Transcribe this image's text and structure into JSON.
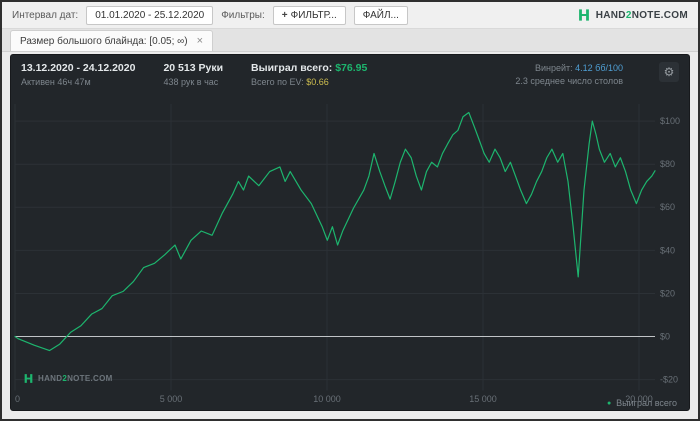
{
  "colors": {
    "green": "#1db56e",
    "ev_yellow": "#cdbd4f",
    "winrate_blue": "#4f9fd4"
  },
  "icons": {
    "gear": "⚙",
    "close": "×",
    "plus": "+",
    "legend_dot": "●"
  },
  "brand": {
    "pre": "HAND",
    "two": "2",
    "post": "NOTE.COM"
  },
  "topbar": {
    "date_interval_label": "Интервал дат:",
    "date_range": "01.01.2020 - 25.12.2020",
    "filters_label": "Фильтры:",
    "add_filter_label": "ФИЛЬТР...",
    "file_label": "ФАЙЛ..."
  },
  "tabs": [
    {
      "label": "Размер большого блайнда: [0.05; ∞)"
    }
  ],
  "stats": {
    "date_range": "13.12.2020 - 24.12.2020",
    "active_time": "Активен 46ч 47м",
    "hands": "20 513 Руки",
    "hands_per_hour": "438 рук в час",
    "won_label": "Выиграл всего:",
    "won_value": "$76.95",
    "ev_label": "Всего по EV:",
    "ev_value": "$0.66",
    "winrate_label": "Винрейт:",
    "winrate_value": "4.12 бб/100",
    "avg_tables": "2.3 среднее число столов"
  },
  "chart_data": {
    "type": "line",
    "title": "",
    "xlabel": "",
    "ylabel": "",
    "xlim": [
      0,
      20513
    ],
    "ylim": [
      -25,
      108
    ],
    "grid": true,
    "legend_position": "bottom-right",
    "x_ticks": [
      {
        "v": 0,
        "label": "0"
      },
      {
        "v": 5000,
        "label": "5 000"
      },
      {
        "v": 10000,
        "label": "10 000"
      },
      {
        "v": 15000,
        "label": "15 000"
      },
      {
        "v": 20000,
        "label": "20 000"
      }
    ],
    "y_ticks": [
      {
        "v": -20,
        "label": "-$20"
      },
      {
        "v": 0,
        "label": "$0"
      },
      {
        "v": 20,
        "label": "$20"
      },
      {
        "v": 40,
        "label": "$40"
      },
      {
        "v": 60,
        "label": "$60"
      },
      {
        "v": 80,
        "label": "$80"
      },
      {
        "v": 100,
        "label": "$100"
      }
    ],
    "line_color": "#1db56e",
    "grid_color": "#2c3136",
    "zero_line_color": "#d8dbde",
    "tick_color": "#697077",
    "series": [
      {
        "name": "Выиграл всего",
        "color": "#1db56e",
        "points": [
          [
            0,
            0
          ],
          [
            100,
            -1
          ],
          [
            615,
            -4
          ],
          [
            1108,
            -6.5
          ],
          [
            1436,
            -3.5
          ],
          [
            1785,
            2
          ],
          [
            2113,
            5
          ],
          [
            2462,
            10.5
          ],
          [
            2790,
            13
          ],
          [
            3118,
            19
          ],
          [
            3467,
            21
          ],
          [
            3795,
            25.5
          ],
          [
            4123,
            32
          ],
          [
            4472,
            34
          ],
          [
            4800,
            38
          ],
          [
            5128,
            42.5
          ],
          [
            5313,
            36
          ],
          [
            5641,
            44.7
          ],
          [
            5969,
            49
          ],
          [
            6318,
            47
          ],
          [
            6646,
            57.4
          ],
          [
            6974,
            66
          ],
          [
            7159,
            72
          ],
          [
            7323,
            68
          ],
          [
            7487,
            74.5
          ],
          [
            7815,
            70
          ],
          [
            8164,
            76.6
          ],
          [
            8492,
            78.7
          ],
          [
            8656,
            72
          ],
          [
            8821,
            76.6
          ],
          [
            9169,
            68
          ],
          [
            9497,
            61.7
          ],
          [
            9846,
            51
          ],
          [
            10010,
            44.7
          ],
          [
            10174,
            51
          ],
          [
            10339,
            42.5
          ],
          [
            10503,
            49
          ],
          [
            10851,
            59.6
          ],
          [
            11180,
            68
          ],
          [
            11344,
            74.5
          ],
          [
            11508,
            85
          ],
          [
            11692,
            76.6
          ],
          [
            11857,
            70
          ],
          [
            12021,
            63.8
          ],
          [
            12185,
            72
          ],
          [
            12349,
            80.9
          ],
          [
            12513,
            87
          ],
          [
            12698,
            83
          ],
          [
            12862,
            74.5
          ],
          [
            13026,
            68
          ],
          [
            13190,
            76.6
          ],
          [
            13354,
            80.9
          ],
          [
            13539,
            78.7
          ],
          [
            13703,
            85
          ],
          [
            13867,
            89.4
          ],
          [
            14031,
            93.6
          ],
          [
            14195,
            95.7
          ],
          [
            14359,
            102
          ],
          [
            14544,
            104
          ],
          [
            14708,
            97.9
          ],
          [
            14872,
            91.5
          ],
          [
            15036,
            85
          ],
          [
            15200,
            80.9
          ],
          [
            15385,
            87
          ],
          [
            15549,
            83
          ],
          [
            15713,
            76.6
          ],
          [
            15877,
            80.9
          ],
          [
            16041,
            74.5
          ],
          [
            16205,
            68
          ],
          [
            16390,
            61.7
          ],
          [
            16554,
            66
          ],
          [
            16718,
            72
          ],
          [
            16882,
            76.6
          ],
          [
            17046,
            83
          ],
          [
            17210,
            87
          ],
          [
            17395,
            80.9
          ],
          [
            17559,
            85
          ],
          [
            17723,
            72
          ],
          [
            17887,
            51
          ],
          [
            18051,
            27.7
          ],
          [
            18236,
            68
          ],
          [
            18400,
            89.4
          ],
          [
            18503,
            100
          ],
          [
            18626,
            93.6
          ],
          [
            18728,
            87
          ],
          [
            18892,
            80.9
          ],
          [
            19077,
            85
          ],
          [
            19241,
            78.7
          ],
          [
            19405,
            83
          ],
          [
            19569,
            76.6
          ],
          [
            19733,
            68
          ],
          [
            19918,
            61.7
          ],
          [
            20082,
            68
          ],
          [
            20246,
            72
          ],
          [
            20410,
            74.5
          ],
          [
            20513,
            76.95
          ]
        ]
      }
    ]
  }
}
